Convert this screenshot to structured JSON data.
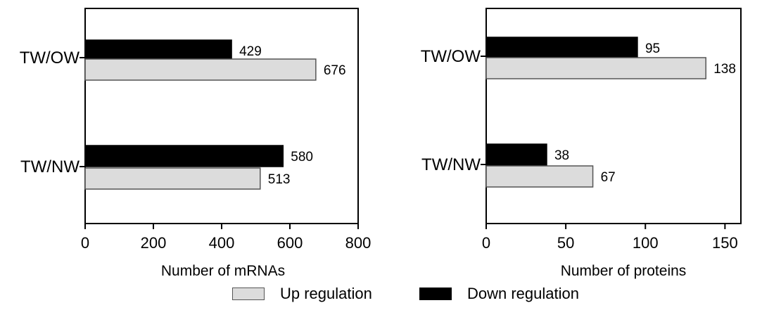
{
  "colors": {
    "up": "#dcdcdc",
    "down": "#000000",
    "axis": "#000000",
    "bar_border": "#555555"
  },
  "legend": {
    "up_label": "Up regulation",
    "down_label": "Down regulation"
  },
  "chart_data": [
    {
      "type": "bar",
      "orientation": "horizontal",
      "categories": [
        "TW/OW",
        "TW/NW"
      ],
      "series": [
        {
          "name": "Down regulation",
          "values": [
            429,
            580
          ]
        },
        {
          "name": "Up regulation",
          "values": [
            676,
            513
          ]
        }
      ],
      "xlabel": "Number of  mRNAs",
      "xlim": [
        0,
        800
      ],
      "xticks": [
        0,
        200,
        400,
        600,
        800
      ],
      "legend": "bottom",
      "grid": false
    },
    {
      "type": "bar",
      "orientation": "horizontal",
      "categories": [
        "TW/OW",
        "TW/NW"
      ],
      "series": [
        {
          "name": "Down regulation",
          "values": [
            95,
            38
          ]
        },
        {
          "name": "Up regulation",
          "values": [
            138,
            67
          ]
        }
      ],
      "xlabel": "Number of  proteins",
      "xlim": [
        0,
        160
      ],
      "xticks": [
        0,
        50,
        100,
        150
      ],
      "legend": "bottom",
      "grid": false
    }
  ]
}
